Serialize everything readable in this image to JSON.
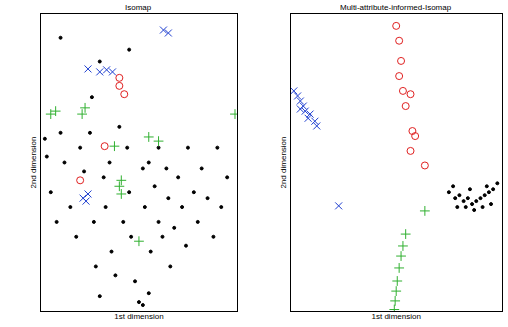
{
  "chart_data": [
    {
      "type": "scatter",
      "title": "Isomap",
      "x_label": "1st dimension",
      "y_label": "2nd dimension",
      "xlim": [
        0,
        100
      ],
      "ylim": [
        0,
        100
      ],
      "tick_labels": false,
      "series": [
        {
          "color": "#000000",
          "marker": "dot",
          "x": [
            2,
            3,
            5,
            8,
            10,
            12,
            15,
            18,
            20,
            22,
            25,
            27,
            28,
            30,
            32,
            33,
            35,
            36,
            38,
            40,
            42,
            44,
            45,
            46,
            48,
            50,
            52,
            53,
            55,
            56,
            58,
            60,
            60,
            62,
            64,
            65,
            66,
            68,
            70,
            72,
            74,
            75,
            78,
            80,
            82,
            85,
            88,
            90,
            92,
            95,
            26,
            30,
            10,
            45,
            55,
            52
          ],
          "y": [
            58,
            52,
            40,
            30,
            60,
            50,
            35,
            25,
            55,
            47,
            60,
            30,
            15,
            5,
            45,
            35,
            50,
            20,
            12,
            62,
            30,
            55,
            40,
            25,
            10,
            3,
            48,
            35,
            50,
            20,
            42,
            30,
            55,
            25,
            48,
            38,
            15,
            28,
            45,
            35,
            22,
            55,
            40,
            30,
            48,
            38,
            25,
            55,
            35,
            45,
            72,
            84,
            92,
            88,
            6,
            2
          ]
        },
        {
          "color": "#1f3fd0",
          "marker": "x",
          "x": [
            62.5,
            65,
            24,
            30,
            33.5,
            36.5,
            21.5,
            24,
            23
          ],
          "y": [
            94.6,
            93.6,
            81.5,
            80.5,
            81.2,
            80.5,
            38,
            39.4,
            37
          ]
        },
        {
          "color": "#e02020",
          "marker": "circle",
          "x": [
            40,
            40,
            42.5,
            20,
            32.5
          ],
          "y": [
            78.5,
            75.8,
            73,
            44,
            55.5
          ]
        },
        {
          "color": "#30b030",
          "marker": "plus",
          "x": [
            5,
            7.5,
            22.5,
            21,
            55,
            60,
            40,
            41,
            41,
            50,
            99,
            37.5
          ],
          "y": [
            66.3,
            67.3,
            68.4,
            66.3,
            58.6,
            57.2,
            42,
            39.4,
            44,
            23.5,
            66.3,
            55.5
          ]
        }
      ]
    },
    {
      "type": "scatter",
      "title": "Multi-attribute-informed-Isomap",
      "x_label": "1st dimension",
      "y_label": "2nd dimension",
      "xlim": [
        0,
        100
      ],
      "ylim": [
        0,
        100
      ],
      "tick_labels": false,
      "series": [
        {
          "color": "#000000",
          "marker": "dot",
          "x": [
            75,
            78,
            80,
            82,
            84,
            86,
            88,
            90,
            92,
            94,
            96,
            79,
            83,
            87,
            91,
            95,
            77,
            85,
            93,
            98
          ],
          "y": [
            40,
            38,
            39,
            37,
            38,
            36,
            37,
            38,
            39,
            40,
            41,
            35,
            35,
            34,
            35,
            36,
            42,
            41,
            42,
            43
          ]
        },
        {
          "color": "#1f3fd0",
          "marker": "x",
          "x": [
            1.4,
            3.2,
            4.5,
            5.9,
            6.8,
            9.1,
            8.2,
            11.4,
            12.3,
            4.5,
            22.7
          ],
          "y": [
            74.1,
            72.4,
            70.7,
            69,
            67.3,
            66.3,
            64.9,
            63.9,
            62.3,
            68,
            35.4
          ]
        },
        {
          "color": "#e02020",
          "marker": "circle",
          "x": [
            50,
            51.4,
            52.3,
            51.4,
            53.2,
            56.8,
            54.5,
            57.7,
            59,
            56.8,
            63.6
          ],
          "y": [
            96,
            91,
            84.2,
            79.1,
            74.1,
            73,
            69,
            60.6,
            58.9,
            53.9,
            49
          ]
        },
        {
          "color": "#30b030",
          "marker": "plus",
          "x": [
            63.6,
            54.5,
            53.2,
            52.3,
            51.4,
            50.5,
            50,
            49.5,
            49.1
          ],
          "y": [
            33.7,
            25.9,
            21.9,
            18.5,
            14.5,
            10.1,
            6.7,
            3.4,
            0.5
          ]
        }
      ]
    }
  ]
}
